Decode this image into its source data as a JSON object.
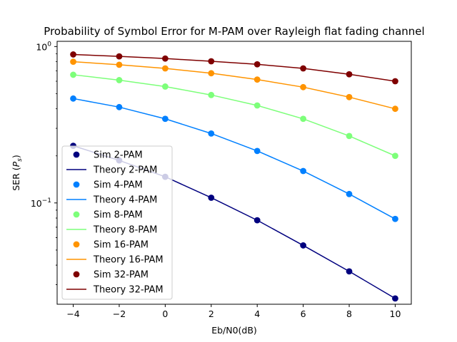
{
  "chart_data": {
    "type": "line",
    "title": "Probability of Symbol Error for M-PAM over Rayleigh flat fading channel",
    "xlabel": "Eb/N0(dB)",
    "ylabel": "SER (P_s)",
    "ylabel_main": "SER (",
    "ylabel_sym": "P",
    "ylabel_sub": "s",
    "ylabel_close": ")",
    "xlim": [
      -4.7,
      10.7
    ],
    "ylim": [
      0.0225,
      1.08
    ],
    "yscale": "log",
    "grid": false,
    "legend_position": "lower-left",
    "x": [
      -4,
      -2,
      0,
      2,
      4,
      6,
      8,
      10
    ],
    "x_ticks": [
      -4,
      -2,
      0,
      2,
      4,
      6,
      8,
      10
    ],
    "x_tick_labels": [
      "−4",
      "−2",
      "0",
      "2",
      "4",
      "6",
      "8",
      "10"
    ],
    "y_ticks": [
      0.1,
      1
    ],
    "y_tick_labels": [
      "10⁻¹",
      "10⁰"
    ],
    "y_tick_bases": [
      "10",
      "10"
    ],
    "y_tick_exps": [
      "−1",
      "0"
    ],
    "series": [
      {
        "M": "2-PAM",
        "color": "#00007f",
        "values": [
          0.232,
          0.187,
          0.147,
          0.108,
          0.0775,
          0.0535,
          0.0365,
          0.0245
        ]
      },
      {
        "M": "4-PAM",
        "color": "#0080ff",
        "values": [
          0.465,
          0.41,
          0.345,
          0.278,
          0.215,
          0.16,
          0.114,
          0.079
        ]
      },
      {
        "M": "8-PAM",
        "color": "#7dff7a",
        "values": [
          0.66,
          0.61,
          0.555,
          0.49,
          0.42,
          0.345,
          0.268,
          0.2
        ]
      },
      {
        "M": "16-PAM",
        "color": "#ff9400",
        "values": [
          0.8,
          0.765,
          0.725,
          0.675,
          0.615,
          0.55,
          0.475,
          0.4
        ]
      },
      {
        "M": "32-PAM",
        "color": "#7f0000",
        "values": [
          0.89,
          0.865,
          0.838,
          0.805,
          0.77,
          0.725,
          0.665,
          0.6
        ]
      }
    ],
    "legend": [
      {
        "label": "Sim 2-PAM",
        "kind": "marker",
        "color": "#00007f"
      },
      {
        "label": "Theory 2-PAM",
        "kind": "line",
        "color": "#00007f"
      },
      {
        "label": "Sim 4-PAM",
        "kind": "marker",
        "color": "#0080ff"
      },
      {
        "label": "Theory 4-PAM",
        "kind": "line",
        "color": "#0080ff"
      },
      {
        "label": "Sim 8-PAM",
        "kind": "marker",
        "color": "#7dff7a"
      },
      {
        "label": "Theory 8-PAM",
        "kind": "line",
        "color": "#7dff7a"
      },
      {
        "label": "Sim 16-PAM",
        "kind": "marker",
        "color": "#ff9400"
      },
      {
        "label": "Theory 16-PAM",
        "kind": "line",
        "color": "#ff9400"
      },
      {
        "label": "Sim 32-PAM",
        "kind": "marker",
        "color": "#7f0000"
      },
      {
        "label": "Theory 32-PAM",
        "kind": "line",
        "color": "#7f0000"
      }
    ]
  }
}
